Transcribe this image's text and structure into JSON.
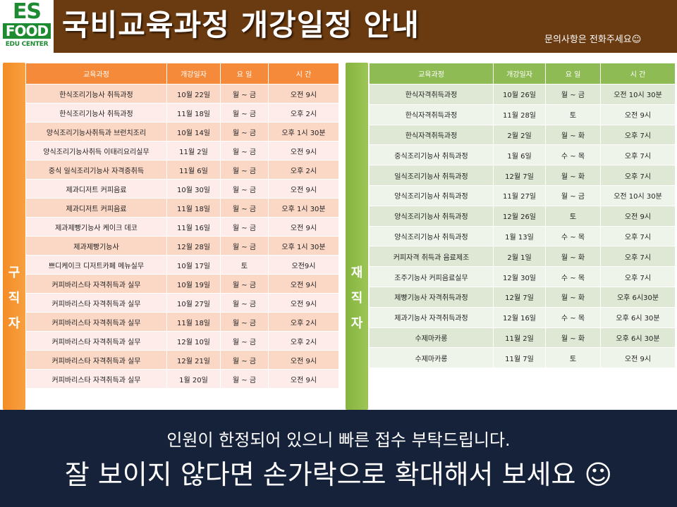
{
  "logo": {
    "line1": "ES",
    "line2": "FOOD",
    "line3": "EDU CENTER"
  },
  "header": {
    "title": "국비교육과정 개강일정 안내",
    "contact": "문의사항은 전화주세요☺"
  },
  "colors": {
    "header_bg": "#6a3a10",
    "left_accent": "#f58a3a",
    "right_accent": "#8fbb55",
    "footer_bg": "#16213a",
    "logo_green": "#1e8a32"
  },
  "left_panel": {
    "side_label": [
      "구",
      "직",
      "자"
    ],
    "columns": [
      "교육과정",
      "개강일자",
      "요 일",
      "시 간"
    ],
    "rows": [
      [
        "한식조리기능사 취득과정",
        "10월 22일",
        "월 ~ 금",
        "오전 9시"
      ],
      [
        "한식조리기능사 취득과정",
        "11월 18일",
        "월 ~ 금",
        "오후 2시"
      ],
      [
        "양식조리기능사취득과 브런치조리",
        "10월 14일",
        "월 ~ 금",
        "오후 1시 30분"
      ],
      [
        "양식조리기능사취득 이태리요리실무",
        "11월 2일",
        "월 ~ 금",
        "오전 9시"
      ],
      [
        "중식 일식조리기능사 자격증취득",
        "11월 6일",
        "월 ~ 금",
        "오후 2시"
      ],
      [
        "제과디저트 커피음료",
        "10월 30일",
        "월 ~ 금",
        "오전 9시"
      ],
      [
        "제과디저트 커피음료",
        "11월 18일",
        "월 ~ 금",
        "오후 1시 30분"
      ],
      [
        "제과제빵기능사 케이크 데코",
        "11월 16일",
        "월 ~ 금",
        "오전 9시"
      ],
      [
        "제과제빵기능사",
        "12월 28일",
        "월 ~ 금",
        "오후 1시 30분"
      ],
      [
        "쁘디케이크 디저트카페 메뉴실무",
        "10월 17일",
        "토",
        "오전9시"
      ],
      [
        "커피바리스타 자격취득과 실무",
        "10월 19일",
        "월 ~ 금",
        "오전 9시"
      ],
      [
        "커피바리스타 자격취득과 실무",
        "10월 27일",
        "월 ~ 금",
        "오전 9시"
      ],
      [
        "커피바리스타 자격취득과 실무",
        "11월 18일",
        "월 ~ 금",
        "오후 2시"
      ],
      [
        "커피바리스타 자격취득과 실무",
        "12월 10일",
        "월 ~ 금",
        "오후 2시"
      ],
      [
        "커피바리스타 자격취득과 실무",
        "12월 21일",
        "월 ~ 금",
        "오전 9시"
      ],
      [
        "커피바리스타 자격취득과 실무",
        "1월 20일",
        "월 ~ 금",
        "오전 9시"
      ]
    ]
  },
  "right_panel": {
    "side_label": [
      "재",
      "직",
      "자"
    ],
    "columns": [
      "교육과정",
      "개강일자",
      "요 일",
      "시 간"
    ],
    "rows": [
      [
        "한식자격취득과정",
        "10월 26일",
        "월 ~ 금",
        "오전 10시 30분"
      ],
      [
        "한식자격취득과정",
        "11월 28일",
        "토",
        "오전 9시"
      ],
      [
        "한식자격취득과정",
        "2월 2일",
        "월 ~ 화",
        "오후 7시"
      ],
      [
        "중식조리기능사 취득과정",
        "1월 6일",
        "수 ~ 목",
        "오후 7시"
      ],
      [
        "일식조리기능사 취득과정",
        "12월 7일",
        "월 ~ 화",
        "오후 7시"
      ],
      [
        "양식조리기능사 취득과정",
        "11월 27일",
        "월 ~ 금",
        "오전 10시 30분"
      ],
      [
        "양식조리기능사 취득과정",
        "12월 26일",
        "토",
        "오전 9시"
      ],
      [
        "양식조리기능사 취득과정",
        "1월 13일",
        "수 ~ 목",
        "오후 7시"
      ],
      [
        "커피자격 취득과 음료제조",
        "2월 1일",
        "월 ~ 화",
        "오후 7시"
      ],
      [
        "조주기능사 커피음료실무",
        "12월 30일",
        "수 ~ 목",
        "오후 7시"
      ],
      [
        "제빵기능사 자격취득과정",
        "12월 7일",
        "월 ~ 화",
        "오후 6시30분"
      ],
      [
        "제과기능사 자격취득과정",
        "12월 16일",
        "수 ~ 목",
        "오후 6시 30분"
      ],
      [
        "수제마카롱",
        "11월 2일",
        "월 ~ 화",
        "오후 6시 30분"
      ],
      [
        "수제마카롱",
        "11월 7일",
        "토",
        "오전 9시"
      ]
    ]
  },
  "footer": {
    "line1": "인원이 한정되어 있으니 빠른 접수 부탁드립니다.",
    "line2": "잘 보이지 않다면 손가락으로 확대해서 보세요 ☺"
  }
}
